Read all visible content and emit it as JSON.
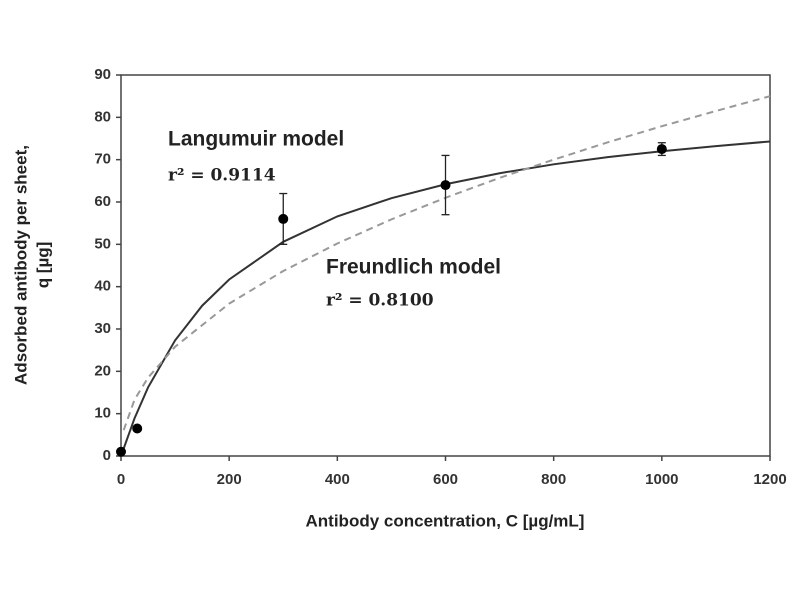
{
  "chart_data": {
    "type": "scatter",
    "xlabel": "Antibody concentration, C [µg/mL]",
    "ylabel": [
      "Adsorbed antibody per sheet,",
      "q [µg]"
    ],
    "xlim": [
      0,
      1200
    ],
    "xticks": [
      0,
      200,
      400,
      600,
      800,
      1000,
      1200
    ],
    "ylim": [
      0,
      90
    ],
    "yticks": [
      0,
      10,
      20,
      30,
      40,
      50,
      60,
      70,
      80,
      90
    ],
    "series": [
      {
        "type": "scatter",
        "color": "#000000",
        "x": [
          0,
          30,
          300,
          600,
          1000
        ],
        "values": [
          1,
          6.5,
          56,
          64,
          72.5
        ],
        "errors": [
          null,
          null,
          6,
          7,
          1.5
        ]
      },
      {
        "type": "line",
        "name": "Langumuir model",
        "annotation": "r² = 0.9114",
        "color": "#333333",
        "dash": false,
        "x": [
          0,
          25,
          50,
          100,
          150,
          200,
          300,
          400,
          500,
          600,
          700,
          800,
          900,
          1000,
          1100,
          1200
        ],
        "values": [
          0,
          8.9,
          16.2,
          27.3,
          35.5,
          41.7,
          50.6,
          56.6,
          60.9,
          64.2,
          66.8,
          68.9,
          70.6,
          72.0,
          73.2,
          74.3
        ]
      },
      {
        "type": "line",
        "name": "Freundlich model",
        "annotation": "r² = 0.8100",
        "color": "#999999",
        "dash": true,
        "x": [
          5,
          25,
          50,
          100,
          200,
          300,
          400,
          500,
          600,
          700,
          800,
          900,
          1000,
          1100,
          1200
        ],
        "values": [
          6.1,
          13.3,
          18.5,
          25.8,
          36.0,
          43.7,
          50.2,
          55.9,
          61.0,
          65.7,
          70.0,
          74.1,
          77.9,
          81.5,
          85.0
        ]
      }
    ]
  }
}
